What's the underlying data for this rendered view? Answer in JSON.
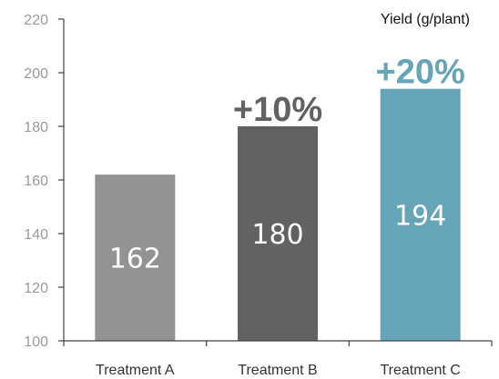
{
  "chart_data": {
    "type": "bar",
    "categories": [
      "Treatment A",
      "Treatment B",
      "Treatment C"
    ],
    "values": [
      162,
      180,
      194
    ],
    "value_labels": [
      "162",
      "180",
      "194"
    ],
    "change_labels": [
      "",
      "+10%",
      "+20%"
    ],
    "unit_label": "Yield (g/plant)",
    "ylim": [
      100,
      220
    ],
    "yticks": [
      100,
      120,
      140,
      160,
      180,
      200,
      220
    ],
    "grid": false,
    "colors": {
      "bars": [
        "#939393",
        "#626262",
        "#66a4b8"
      ],
      "change_labels": [
        "#626262",
        "#626262",
        "#66a4b8"
      ],
      "axis": "#444444",
      "tick_text": "#999999"
    }
  }
}
